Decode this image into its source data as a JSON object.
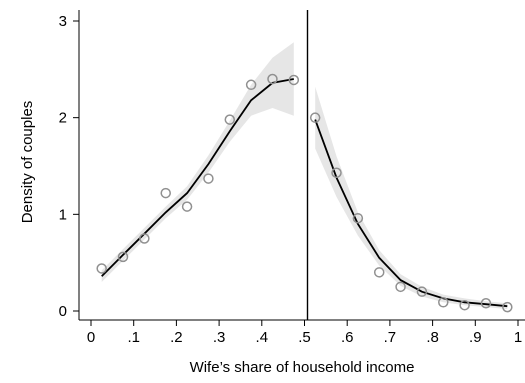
{
  "chart_data": {
    "type": "scatter",
    "xlabel": "Wife’s share of household income",
    "ylabel": "Density of couples",
    "xlim": [
      0,
      1
    ],
    "ylim": [
      0,
      3
    ],
    "x_tick_labels": [
      "0",
      ".1",
      ".2",
      ".3",
      ".4",
      ".5",
      ".6",
      ".7",
      ".8",
      ".9",
      "1"
    ],
    "x_ticks": [
      0,
      0.1,
      0.2,
      0.3,
      0.4,
      0.5,
      0.6,
      0.7,
      0.8,
      0.9,
      1
    ],
    "y_tick_labels": [
      "0",
      "1",
      "2",
      "3"
    ],
    "y_ticks": [
      0,
      1,
      2,
      3
    ],
    "grid": false,
    "cutoff_line_x": 0.5,
    "colors": {
      "points": "#909090",
      "fit": "#000000",
      "band": "#e6e6e6",
      "cutoff": "#000000"
    },
    "series": [
      {
        "role": "binned density",
        "x": [
          0.025,
          0.075,
          0.125,
          0.175,
          0.225,
          0.275,
          0.325,
          0.375,
          0.425,
          0.475,
          0.525,
          0.575,
          0.625,
          0.675,
          0.725,
          0.775,
          0.825,
          0.875,
          0.925,
          0.975
        ],
        "y": [
          0.44,
          0.56,
          0.75,
          1.22,
          1.08,
          1.37,
          1.98,
          2.34,
          2.4,
          2.39,
          2.0,
          1.43,
          0.96,
          0.4,
          0.25,
          0.2,
          0.09,
          0.06,
          0.08,
          0.04
        ]
      },
      {
        "role": "fit below cutoff",
        "x": [
          0.025,
          0.075,
          0.125,
          0.175,
          0.225,
          0.275,
          0.325,
          0.375,
          0.425,
          0.475
        ],
        "y": [
          0.36,
          0.58,
          0.8,
          1.02,
          1.22,
          1.52,
          1.86,
          2.18,
          2.36,
          2.4
        ],
        "lower": [
          0.3,
          0.52,
          0.74,
          0.96,
          1.15,
          1.43,
          1.75,
          2.02,
          2.1,
          2.02
        ],
        "upper": [
          0.42,
          0.64,
          0.86,
          1.08,
          1.29,
          1.61,
          1.97,
          2.34,
          2.62,
          2.78
        ]
      },
      {
        "role": "fit above cutoff",
        "x": [
          0.525,
          0.575,
          0.625,
          0.675,
          0.725,
          0.775,
          0.825,
          0.875,
          0.925,
          0.975
        ],
        "y": [
          1.98,
          1.38,
          0.9,
          0.55,
          0.32,
          0.2,
          0.13,
          0.09,
          0.07,
          0.05
        ],
        "lower": [
          1.68,
          1.18,
          0.78,
          0.47,
          0.26,
          0.15,
          0.09,
          0.06,
          0.04,
          0.02
        ],
        "upper": [
          2.32,
          1.6,
          1.02,
          0.63,
          0.38,
          0.25,
          0.17,
          0.13,
          0.1,
          0.08
        ]
      }
    ]
  }
}
